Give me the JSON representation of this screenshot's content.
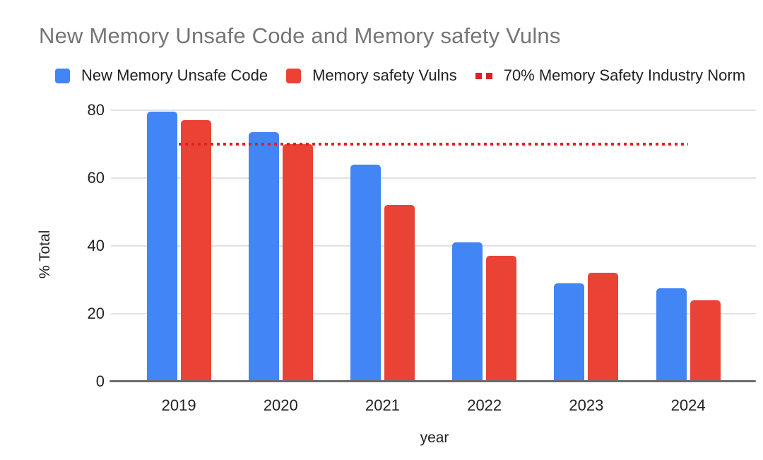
{
  "chart_data": {
    "type": "bar",
    "title": "New Memory Unsafe Code and Memory safety Vulns",
    "xlabel": "year",
    "ylabel": "% Total",
    "categories": [
      "2019",
      "2020",
      "2021",
      "2022",
      "2023",
      "2024"
    ],
    "series": [
      {
        "name": "New Memory Unsafe Code",
        "type": "bar",
        "color": "#4285f4",
        "values": [
          79.5,
          73.5,
          64,
          41,
          29,
          27.5
        ]
      },
      {
        "name": "Memory safety Vulns",
        "type": "bar",
        "color": "#ea4335",
        "values": [
          77,
          70,
          52,
          37,
          32,
          24
        ]
      },
      {
        "name": "70% Memory Safety Industry Norm",
        "type": "dotted-line",
        "color": "#e01e26",
        "values": [
          70,
          70,
          70,
          70,
          70,
          70
        ]
      }
    ],
    "ylim": [
      0,
      80
    ],
    "yticks": [
      0,
      20,
      40,
      60,
      80
    ],
    "grid": true,
    "legend_position": "top"
  },
  "colors": {
    "title_gray": "#757575",
    "axis_text": "#222222",
    "gridline": "#e2e2e2",
    "axis_line": "#6b6b6b",
    "background": "#ffffff",
    "bar_blue": "#4285f4",
    "bar_red": "#ea4335",
    "norm_line_red": "#e01e26"
  }
}
